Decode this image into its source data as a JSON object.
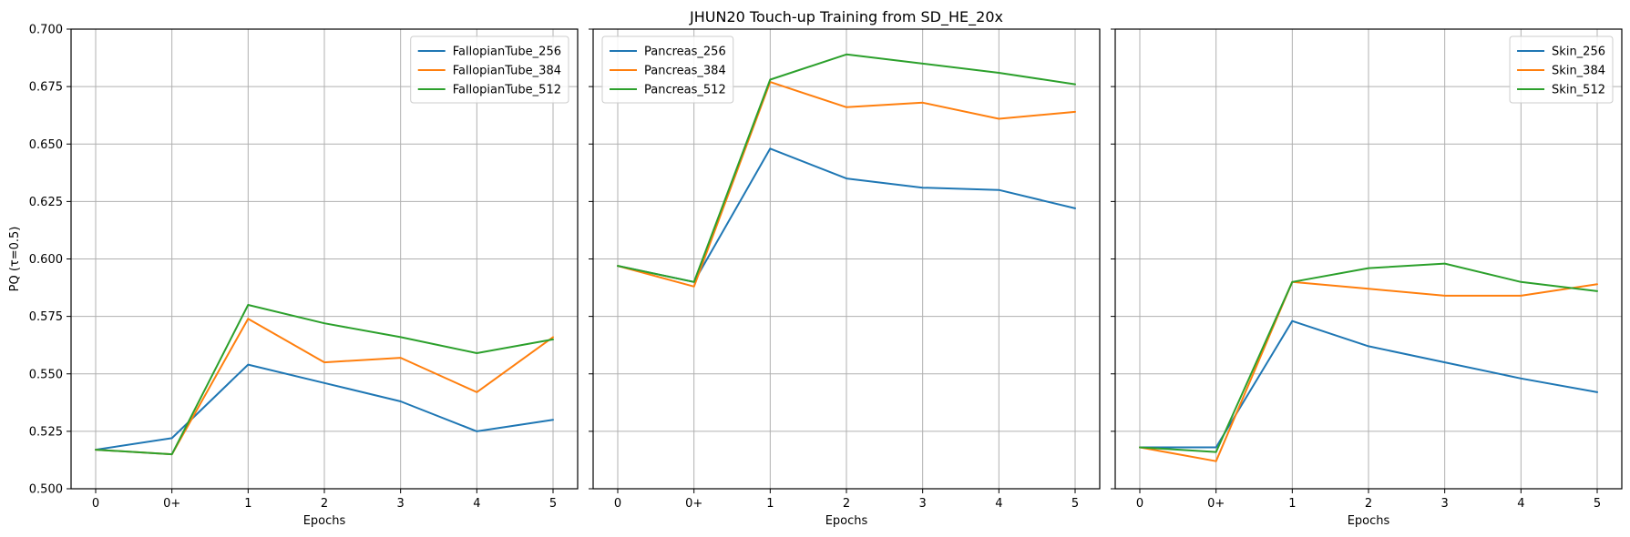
{
  "figure_title": "JHUN20 Touch-up Training from SD_HE_20x",
  "colors": {
    "s256": "#1f77b4",
    "s384": "#ff7f0e",
    "s512": "#2ca02c"
  },
  "chart_data": [
    {
      "type": "line",
      "xlabel": "Epochs",
      "ylabel": "PQ  (τ=0.5)",
      "categories": [
        "0",
        "0+",
        "1",
        "2",
        "3",
        "4",
        "5"
      ],
      "ylim": [
        0.5,
        0.7
      ],
      "yticks": [
        "0.500",
        "0.525",
        "0.550",
        "0.575",
        "0.600",
        "0.625",
        "0.650",
        "0.675",
        "0.700"
      ],
      "grid": true,
      "legend_position": "top-right",
      "series": [
        {
          "name": "FallopianTube_256",
          "color": "#1f77b4",
          "values": [
            0.517,
            0.522,
            0.554,
            0.546,
            0.538,
            0.525,
            0.53
          ]
        },
        {
          "name": "FallopianTube_384",
          "color": "#ff7f0e",
          "values": [
            0.517,
            0.515,
            0.574,
            0.555,
            0.557,
            0.542,
            0.566
          ]
        },
        {
          "name": "FallopianTube_512",
          "color": "#2ca02c",
          "values": [
            0.517,
            0.515,
            0.58,
            0.572,
            0.566,
            0.559,
            0.565
          ]
        }
      ]
    },
    {
      "type": "line",
      "xlabel": "Epochs",
      "ylabel": "",
      "categories": [
        "0",
        "0+",
        "1",
        "2",
        "3",
        "4",
        "5"
      ],
      "ylim": [
        0.5,
        0.7
      ],
      "yticks": [],
      "grid": true,
      "legend_position": "top-left",
      "series": [
        {
          "name": "Pancreas_256",
          "color": "#1f77b4",
          "values": [
            0.597,
            0.59,
            0.648,
            0.635,
            0.631,
            0.63,
            0.622
          ]
        },
        {
          "name": "Pancreas_384",
          "color": "#ff7f0e",
          "values": [
            0.597,
            0.588,
            0.677,
            0.666,
            0.668,
            0.661,
            0.664
          ]
        },
        {
          "name": "Pancreas_512",
          "color": "#2ca02c",
          "values": [
            0.597,
            0.59,
            0.678,
            0.689,
            0.685,
            0.681,
            0.676
          ]
        }
      ]
    },
    {
      "type": "line",
      "xlabel": "Epochs",
      "ylabel": "",
      "categories": [
        "0",
        "0+",
        "1",
        "2",
        "3",
        "4",
        "5"
      ],
      "ylim": [
        0.5,
        0.7
      ],
      "yticks": [],
      "grid": true,
      "legend_position": "top-right",
      "series": [
        {
          "name": "Skin_256",
          "color": "#1f77b4",
          "values": [
            0.518,
            0.518,
            0.573,
            0.562,
            0.555,
            0.548,
            0.542
          ]
        },
        {
          "name": "Skin_384",
          "color": "#ff7f0e",
          "values": [
            0.518,
            0.512,
            0.59,
            0.587,
            0.584,
            0.584,
            0.589
          ]
        },
        {
          "name": "Skin_512",
          "color": "#2ca02c",
          "values": [
            0.518,
            0.516,
            0.59,
            0.596,
            0.598,
            0.59,
            0.586
          ]
        }
      ]
    }
  ]
}
